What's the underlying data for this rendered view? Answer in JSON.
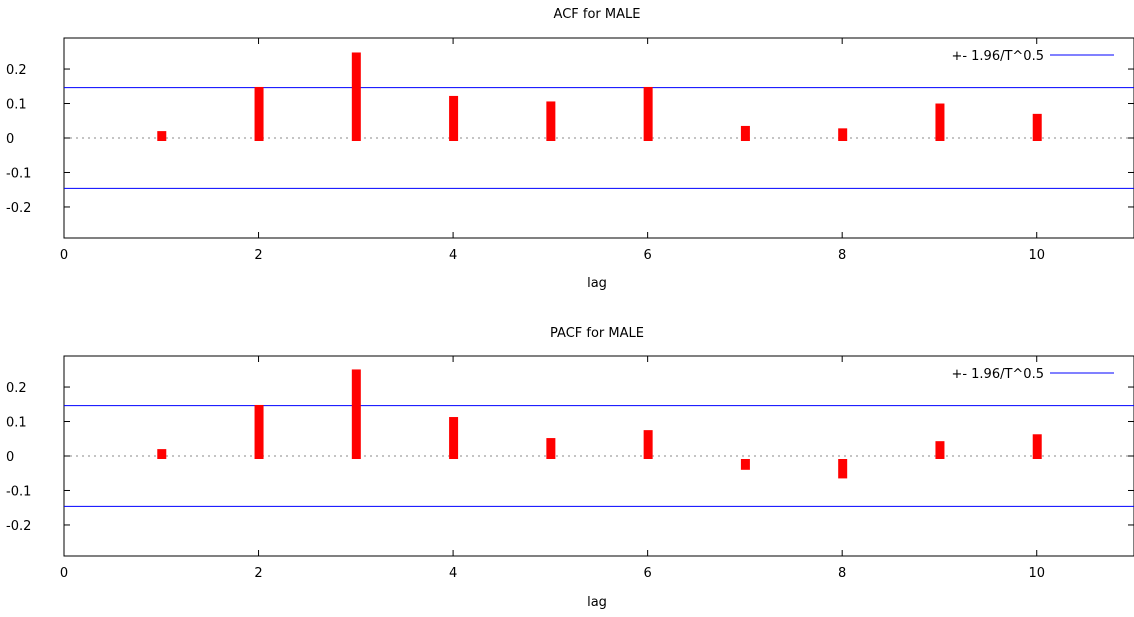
{
  "chart_data": [
    {
      "type": "bar",
      "title": "ACF for MALE",
      "xlabel": "lag",
      "ylabel": "",
      "xlim": [
        0,
        11
      ],
      "ylim": [
        -0.29,
        0.29
      ],
      "x_ticks": [
        "0",
        "2",
        "4",
        "6",
        "8",
        "10"
      ],
      "y_ticks": [
        "0.2",
        "0.1",
        "0",
        "-0.1",
        "-0.2"
      ],
      "lags": [
        1,
        2,
        3,
        4,
        5,
        6,
        7,
        8,
        9,
        10
      ],
      "values": [
        0.02,
        0.148,
        0.248,
        0.122,
        0.106,
        0.148,
        0.035,
        0.028,
        0.1,
        0.07
      ],
      "bar_color": "#ff0000",
      "confidence_band": 0.146,
      "band_color": "#0000ff",
      "zero_line": "dotted",
      "grid": false,
      "legend": {
        "label": "+- 1.96/T^0.5",
        "placement": "top-right"
      }
    },
    {
      "type": "bar",
      "title": "PACF for MALE",
      "xlabel": "lag",
      "ylabel": "",
      "xlim": [
        0,
        11
      ],
      "ylim": [
        -0.29,
        0.29
      ],
      "x_ticks": [
        "0",
        "2",
        "4",
        "6",
        "8",
        "10"
      ],
      "y_ticks": [
        "0.2",
        "0.1",
        "0",
        "-0.1",
        "-0.2"
      ],
      "lags": [
        1,
        2,
        3,
        4,
        5,
        6,
        7,
        8,
        9,
        10
      ],
      "values": [
        0.02,
        0.148,
        0.251,
        0.113,
        0.052,
        0.075,
        -0.04,
        -0.065,
        0.043,
        0.063
      ],
      "bar_color": "#ff0000",
      "confidence_band": 0.146,
      "band_color": "#0000ff",
      "zero_line": "dotted",
      "grid": false,
      "legend": {
        "label": "+- 1.96/T^0.5",
        "placement": "top-right"
      }
    }
  ]
}
